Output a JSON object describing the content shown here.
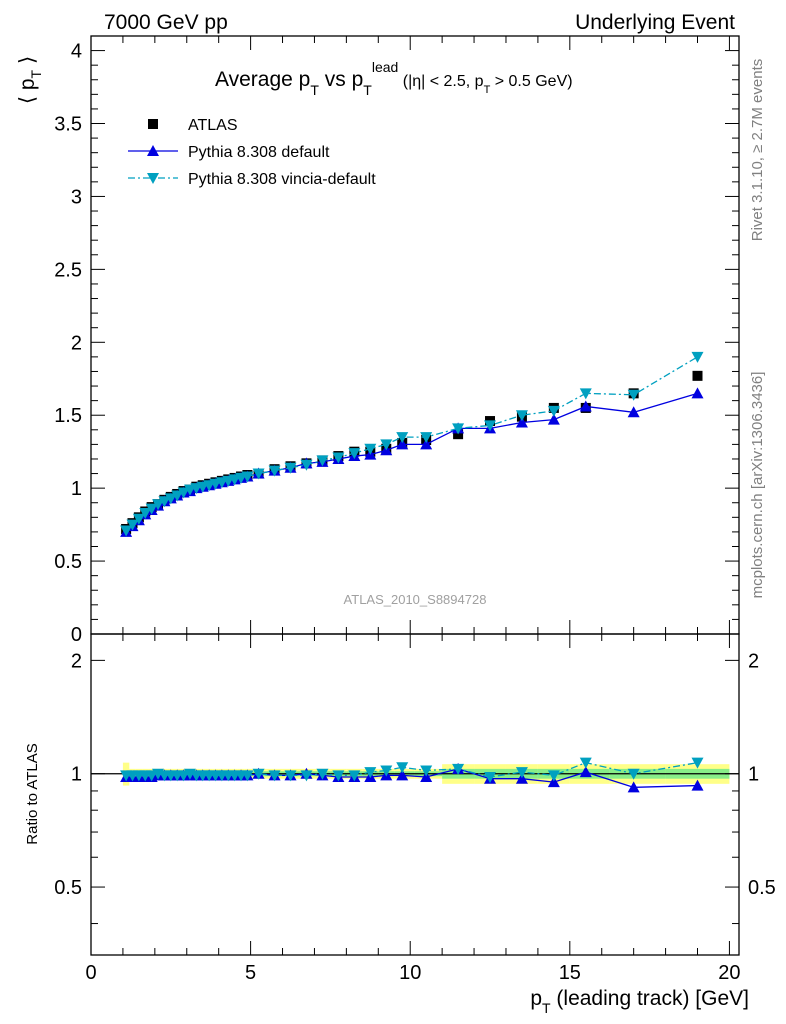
{
  "header": {
    "left": "7000 GeV pp",
    "right": "Underlying Event"
  },
  "side_text": {
    "rivet": "Rivet 3.1.10, ≥ 2.7M events",
    "mcplots": "mcplots.cern.ch [arXiv:1306.3436]"
  },
  "chart_data": [
    {
      "type": "scatter",
      "title": "Average p_T vs p_T^lead (|η| < 2.5, p_T > 0.5 GeV)",
      "title_parts": {
        "main": "Average p",
        "sub1": "T",
        "vs": " vs p",
        "sub2": "T",
        "sup": "lead",
        "cut_open": " (|η| < 2.5, p",
        "cut_sub": "T",
        "cut_close": " > 0.5 GeV)"
      },
      "ylabel": "⟨ p_T ⟩",
      "ylabel_parts": {
        "open": "⟨ p",
        "sub": "T",
        "close": " ⟩"
      },
      "watermark": "ATLAS_2010_S8894728",
      "xlim": [
        0,
        20.3
      ],
      "ylim": [
        0,
        4.1
      ],
      "yticks": [
        "0",
        "0.5",
        "1",
        "1.5",
        "2",
        "2.5",
        "3",
        "3.5",
        "4"
      ],
      "legend_position": "top-left",
      "series": [
        {
          "name": "ATLAS",
          "color": "#000000",
          "marker": "square",
          "x": [
            1.1,
            1.3,
            1.5,
            1.7,
            1.9,
            2.1,
            2.3,
            2.5,
            2.7,
            2.9,
            3.1,
            3.3,
            3.5,
            3.7,
            3.9,
            4.1,
            4.3,
            4.5,
            4.7,
            4.9,
            5.25,
            5.75,
            6.25,
            6.75,
            7.25,
            7.75,
            8.25,
            8.75,
            9.25,
            9.75,
            10.5,
            11.5,
            12.5,
            13.5,
            14.5,
            15.5,
            17.0,
            19.0
          ],
          "y": [
            0.72,
            0.76,
            0.8,
            0.84,
            0.87,
            0.89,
            0.92,
            0.94,
            0.96,
            0.98,
            0.99,
            1.01,
            1.02,
            1.03,
            1.04,
            1.05,
            1.06,
            1.07,
            1.08,
            1.09,
            1.1,
            1.13,
            1.15,
            1.17,
            1.19,
            1.22,
            1.25,
            1.25,
            1.27,
            1.31,
            1.33,
            1.37,
            1.46,
            1.49,
            1.55,
            1.55,
            1.65,
            1.77
          ]
        },
        {
          "name": "Pythia 8.308 default",
          "color": "#0000e0",
          "marker": "triangle-up",
          "line": "solid",
          "x": [
            1.1,
            1.3,
            1.5,
            1.7,
            1.9,
            2.1,
            2.3,
            2.5,
            2.7,
            2.9,
            3.1,
            3.3,
            3.5,
            3.7,
            3.9,
            4.1,
            4.3,
            4.5,
            4.7,
            4.9,
            5.25,
            5.75,
            6.25,
            6.75,
            7.25,
            7.75,
            8.25,
            8.75,
            9.25,
            9.75,
            10.5,
            11.5,
            12.5,
            13.5,
            14.5,
            15.5,
            17.0,
            19.0
          ],
          "y": [
            0.7,
            0.74,
            0.78,
            0.82,
            0.85,
            0.88,
            0.91,
            0.93,
            0.95,
            0.97,
            0.98,
            1.0,
            1.01,
            1.02,
            1.03,
            1.04,
            1.05,
            1.06,
            1.07,
            1.08,
            1.1,
            1.12,
            1.14,
            1.17,
            1.18,
            1.2,
            1.22,
            1.23,
            1.26,
            1.3,
            1.3,
            1.41,
            1.41,
            1.45,
            1.47,
            1.56,
            1.52,
            1.65
          ]
        },
        {
          "name": "Pythia 8.308 vincia-default",
          "color": "#00a0c0",
          "marker": "triangle-down",
          "line": "dashdot",
          "x": [
            1.1,
            1.3,
            1.5,
            1.7,
            1.9,
            2.1,
            2.3,
            2.5,
            2.7,
            2.9,
            3.1,
            3.3,
            3.5,
            3.7,
            3.9,
            4.1,
            4.3,
            4.5,
            4.7,
            4.9,
            5.25,
            5.75,
            6.25,
            6.75,
            7.25,
            7.75,
            8.25,
            8.75,
            9.25,
            9.75,
            10.5,
            11.5,
            12.5,
            13.5,
            14.5,
            15.5,
            17.0,
            19.0
          ],
          "y": [
            0.71,
            0.75,
            0.79,
            0.83,
            0.86,
            0.89,
            0.91,
            0.93,
            0.95,
            0.97,
            0.99,
            1.0,
            1.01,
            1.02,
            1.03,
            1.04,
            1.05,
            1.06,
            1.07,
            1.08,
            1.1,
            1.12,
            1.14,
            1.16,
            1.19,
            1.21,
            1.24,
            1.27,
            1.3,
            1.35,
            1.35,
            1.41,
            1.43,
            1.5,
            1.53,
            1.65,
            1.64,
            1.9
          ]
        }
      ]
    },
    {
      "type": "scatter",
      "ylabel": "Ratio to ATLAS",
      "xlabel": "p_T (leading track) [GeV]",
      "xlabel_parts": {
        "p": "p",
        "sub": "T",
        "rest": " (leading track) [GeV]"
      },
      "xlim": [
        0,
        20.3
      ],
      "xticks": [
        "0",
        "5",
        "10",
        "15",
        "20"
      ],
      "ylim": [
        0.33,
        2.35
      ],
      "scale": "log",
      "yticks": [
        "0.5",
        "1",
        "2"
      ],
      "bands": [
        {
          "name": "ATLAS uncertainty (stat)",
          "color": "#88ee88"
        },
        {
          "name": "ATLAS uncertainty (total)",
          "color": "#ffff88"
        }
      ],
      "series": [
        {
          "name": "Pythia 8.308 default",
          "x": [
            1.1,
            1.3,
            1.5,
            1.7,
            1.9,
            2.1,
            2.3,
            2.5,
            2.7,
            2.9,
            3.1,
            3.3,
            3.5,
            3.7,
            3.9,
            4.1,
            4.3,
            4.5,
            4.7,
            4.9,
            5.25,
            5.75,
            6.25,
            6.75,
            7.25,
            7.75,
            8.25,
            8.75,
            9.25,
            9.75,
            10.5,
            11.5,
            12.5,
            13.5,
            14.5,
            15.5,
            17.0,
            19.0
          ],
          "y": [
            0.98,
            0.98,
            0.98,
            0.98,
            0.98,
            0.99,
            0.99,
            0.99,
            0.99,
            0.99,
            0.99,
            0.99,
            0.99,
            0.99,
            0.99,
            0.99,
            0.99,
            0.99,
            0.99,
            0.99,
            1.0,
            0.99,
            0.99,
            1.0,
            0.99,
            0.98,
            0.98,
            0.98,
            0.99,
            0.99,
            0.98,
            1.03,
            0.97,
            0.97,
            0.95,
            1.01,
            0.92,
            0.93
          ]
        },
        {
          "name": "Pythia 8.308 vincia-default",
          "x": [
            1.1,
            1.3,
            1.5,
            1.7,
            1.9,
            2.1,
            2.3,
            2.5,
            2.7,
            2.9,
            3.1,
            3.3,
            3.5,
            3.7,
            3.9,
            4.1,
            4.3,
            4.5,
            4.7,
            4.9,
            5.25,
            5.75,
            6.25,
            6.75,
            7.25,
            7.75,
            8.25,
            8.75,
            9.25,
            9.75,
            10.5,
            11.5,
            12.5,
            13.5,
            14.5,
            15.5,
            17.0,
            19.0
          ],
          "y": [
            0.99,
            0.99,
            0.99,
            0.99,
            0.99,
            1.0,
            0.99,
            0.99,
            0.99,
            0.99,
            1.0,
            0.99,
            0.99,
            0.99,
            0.99,
            0.99,
            0.99,
            0.99,
            0.99,
            0.99,
            1.0,
            0.99,
            0.99,
            0.99,
            1.0,
            0.99,
            0.99,
            1.01,
            1.02,
            1.04,
            1.02,
            1.03,
            0.98,
            1.01,
            0.99,
            1.07,
            1.0,
            1.07
          ]
        }
      ]
    }
  ]
}
